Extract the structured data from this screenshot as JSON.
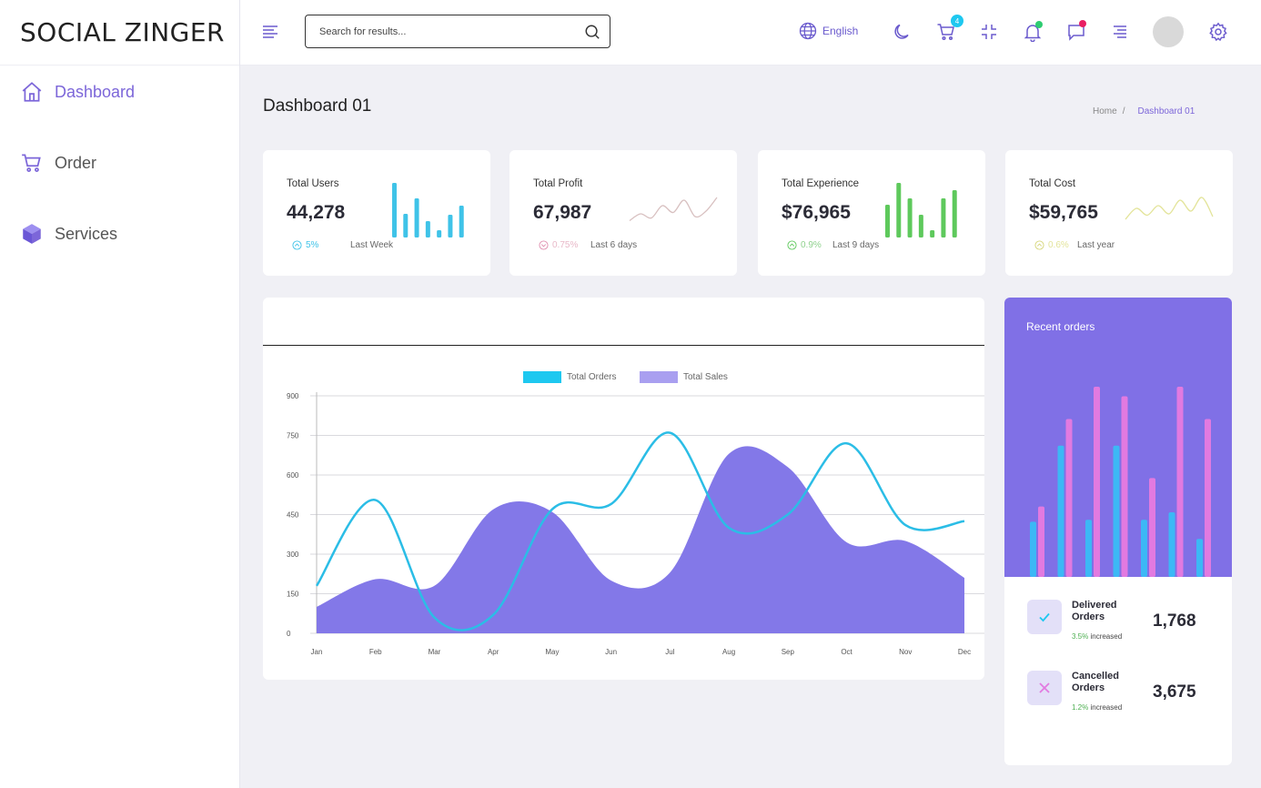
{
  "brand": {
    "logo": "SOCIAL ZINGER"
  },
  "sidebar": {
    "items": [
      {
        "label": "Dashboard",
        "icon": "home-icon",
        "active": true
      },
      {
        "label": "Order",
        "icon": "cart-icon",
        "active": false
      },
      {
        "label": "Services",
        "icon": "cube-icon",
        "active": false
      }
    ]
  },
  "header": {
    "search_placeholder": "Search for results...",
    "language": "English",
    "cart_count": "4",
    "icons": [
      "menu-icon",
      "search-icon",
      "globe-icon",
      "moon-icon",
      "cart-icon",
      "minimize-icon",
      "bell-icon",
      "chat-icon",
      "align-right-icon",
      "avatar",
      "gear-icon"
    ]
  },
  "page": {
    "title": "Dashboard 01",
    "breadcrumb": {
      "home": "Home",
      "separator": "/",
      "current": "Dashboard 01"
    }
  },
  "stats": [
    {
      "label": "Total Users",
      "value": "44,278",
      "change": "5%",
      "period": "Last Week",
      "color": "#3fc3e8",
      "spark_type": "bar",
      "spark": [
        60,
        26,
        43,
        18,
        8,
        25,
        35
      ]
    },
    {
      "label": "Total Profit",
      "value": "67,987",
      "change": "0.75%",
      "period": "Last 6 days",
      "color": "#d8c0c0",
      "spark_type": "line",
      "spark": [
        3,
        8,
        5,
        14,
        9,
        18,
        6,
        10,
        20
      ]
    },
    {
      "label": "Total Experience",
      "value": "$76,965",
      "change": "0.9%",
      "period": "Last 9 days",
      "color": "#5ec95c",
      "spark_type": "bar",
      "spark": [
        36,
        60,
        43,
        25,
        8,
        43,
        52
      ]
    },
    {
      "label": "Total Cost",
      "value": "$59,765",
      "change": "0.6%",
      "period": "Last year",
      "color": "#e3e49a",
      "spark_type": "line",
      "spark": [
        4,
        12,
        7,
        14,
        8,
        18,
        10,
        20,
        6
      ]
    }
  ],
  "colors": {
    "accent": "#7c66d9",
    "orders_line": "#2bbde6",
    "sales_area": "#8378e8",
    "recent_bg": "#8070e6",
    "bar_blue": "#3cb8f5",
    "bar_pink": "#e27ae0"
  },
  "chart_data": {
    "type": "line",
    "categories": [
      "Jan",
      "Feb",
      "Mar",
      "Apr",
      "May",
      "Jun",
      "Jul",
      "Aug",
      "Sep",
      "Oct",
      "Nov",
      "Dec"
    ],
    "series": [
      {
        "name": "Total Orders",
        "type": "line",
        "values": [
          180,
          505,
          60,
          70,
          470,
          490,
          760,
          400,
          450,
          720,
          410,
          425
        ]
      },
      {
        "name": "Total Sales",
        "type": "area",
        "values": [
          100,
          205,
          180,
          470,
          460,
          200,
          230,
          680,
          630,
          345,
          350,
          210
        ]
      }
    ],
    "yticks": [
      0,
      150,
      300,
      450,
      600,
      750,
      900
    ],
    "ylim": [
      0,
      900
    ],
    "grid": true,
    "legend_position": "top-center"
  },
  "recent_orders": {
    "title": "Recent orders",
    "bars": {
      "blue": [
        0.29,
        0.69,
        0.3,
        0.69,
        0.3,
        0.34,
        0.2
      ],
      "pink": [
        0.37,
        0.83,
        1.0,
        0.95,
        0.52,
        1.0,
        0.83
      ]
    },
    "items": [
      {
        "label": "Delivered Orders",
        "change": "3.5%",
        "change_text": "increased",
        "value": "1,768",
        "icon": "check-icon"
      },
      {
        "label": "Cancelled Orders",
        "change": "1.2%",
        "change_text": "increased",
        "value": "3,675",
        "icon": "x-icon"
      }
    ]
  }
}
